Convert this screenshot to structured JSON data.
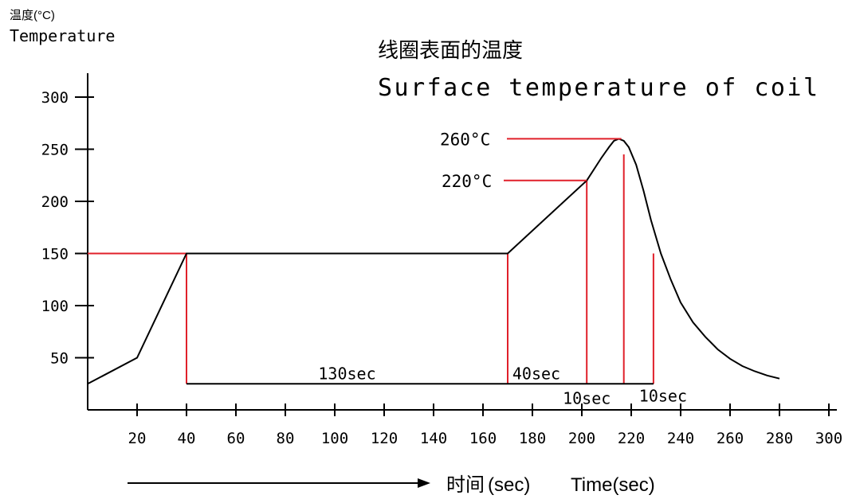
{
  "chart_data": {
    "type": "line",
    "y_label_cn": "温度(°C)",
    "y_label_en": "Temperature",
    "title_cn": "线圈表面的温度",
    "title_en": "Surface temperature of coil",
    "x_label_cn": "时间",
    "x_label_unit": "(sec)",
    "x_label_en": "Time(sec)",
    "xlim": [
      0,
      300
    ],
    "ylim": [
      0,
      300
    ],
    "x_ticks": [
      20,
      40,
      60,
      80,
      100,
      120,
      140,
      160,
      180,
      200,
      220,
      240,
      260,
      280,
      300
    ],
    "y_ticks": [
      50,
      100,
      150,
      200,
      250,
      300
    ],
    "series": [
      {
        "x": [
          0,
          20,
          40,
          170,
          202,
          208,
          211,
          213,
          215,
          217,
          219,
          222,
          225,
          228,
          232,
          236,
          240,
          245,
          250,
          255,
          260,
          265,
          270,
          275,
          280
        ],
        "y": [
          25,
          50,
          150,
          150,
          220,
          242,
          252,
          258,
          260,
          258,
          252,
          235,
          210,
          182,
          150,
          125,
          103,
          84,
          70,
          58,
          49,
          42,
          37,
          33,
          30
        ]
      }
    ],
    "annotations": {
      "peak_label": "260°C",
      "peak_temp": 260,
      "mid_label": "220°C",
      "mid_temp": 220,
      "base_temp": 150,
      "marker_times": [
        40,
        170,
        202,
        217,
        229
      ],
      "baseline_temp": 25,
      "durations": [
        {
          "label": "130sec",
          "row": 1
        },
        {
          "label": "40sec",
          "row": 1
        },
        {
          "label": "10sec",
          "row": 2
        },
        {
          "label": "10sec",
          "row": 2
        }
      ]
    }
  }
}
